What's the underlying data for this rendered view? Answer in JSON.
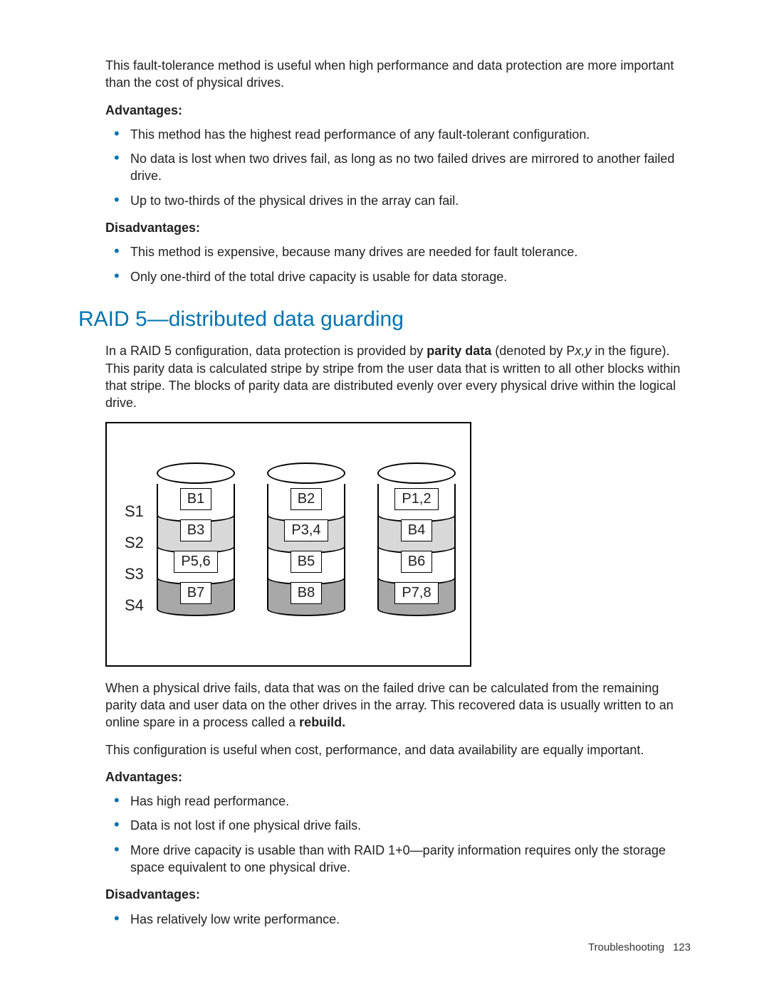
{
  "colors": {
    "accent": "#0073b0",
    "text": "#222222",
    "diagram_border": "#000000",
    "shade_none": "#ffffff",
    "shade_light": "#d8d8d8",
    "shade_dark": "#a8a8a8"
  },
  "intro_paragraph": "This fault-tolerance method is useful when high performance and data protection are more important than the cost of physical drives.",
  "advantages_heading": "Advantages:",
  "disadvantages_heading": "Disadvantages:",
  "top_advantages": [
    "This method has the highest read performance of any fault-tolerant configuration.",
    "No data is lost when two drives fail, as long as no two failed drives are mirrored to another failed drive.",
    "Up to two-thirds of the physical drives in the array can fail."
  ],
  "top_disadvantages": [
    "This method is expensive, because many drives are needed for fault tolerance.",
    "Only one-third of the total drive capacity is usable for data storage."
  ],
  "section_heading": "RAID 5—distributed data guarding",
  "raid5_para_pre": "In a RAID 5 configuration, data protection is provided by ",
  "raid5_para_bold": "parity data",
  "raid5_para_mid1": " (denoted by P",
  "raid5_para_italic": "x,y",
  "raid5_para_post": " in the figure). This parity data is calculated stripe by stripe from the user data that is written to all other blocks within that stripe. The blocks of parity data are distributed evenly over every physical drive within the logical drive.",
  "diagram": {
    "stripe_labels": [
      "S1",
      "S2",
      "S3",
      "S4"
    ],
    "drives": [
      {
        "segments": [
          {
            "label": "B1",
            "shade": "none"
          },
          {
            "label": "B3",
            "shade": "light"
          },
          {
            "label": "P5,6",
            "shade": "none"
          },
          {
            "label": "B7",
            "shade": "dark"
          }
        ]
      },
      {
        "segments": [
          {
            "label": "B2",
            "shade": "none"
          },
          {
            "label": "P3,4",
            "shade": "light"
          },
          {
            "label": "B5",
            "shade": "none"
          },
          {
            "label": "B8",
            "shade": "dark"
          }
        ]
      },
      {
        "segments": [
          {
            "label": "P1,2",
            "shade": "none"
          },
          {
            "label": "B4",
            "shade": "light"
          },
          {
            "label": "B6",
            "shade": "none"
          },
          {
            "label": "P7,8",
            "shade": "dark"
          }
        ]
      }
    ]
  },
  "rebuild_para_pre": "When a physical drive fails, data that was on the failed drive can be calculated from the remaining parity data and user data on the other drives in the array. This recovered data is usually written to an online spare in a process called a ",
  "rebuild_para_bold": "rebuild.",
  "config_useful": "This configuration is useful when cost, performance, and data availability are equally important.",
  "raid5_advantages": [
    "Has high read performance.",
    "Data is not lost if one physical drive fails.",
    "More drive capacity is usable than with RAID 1+0—parity information requires only the storage space equivalent to one physical drive."
  ],
  "raid5_disadvantages": [
    "Has relatively low write performance."
  ],
  "footer_section": "Troubleshooting",
  "footer_page": "123"
}
